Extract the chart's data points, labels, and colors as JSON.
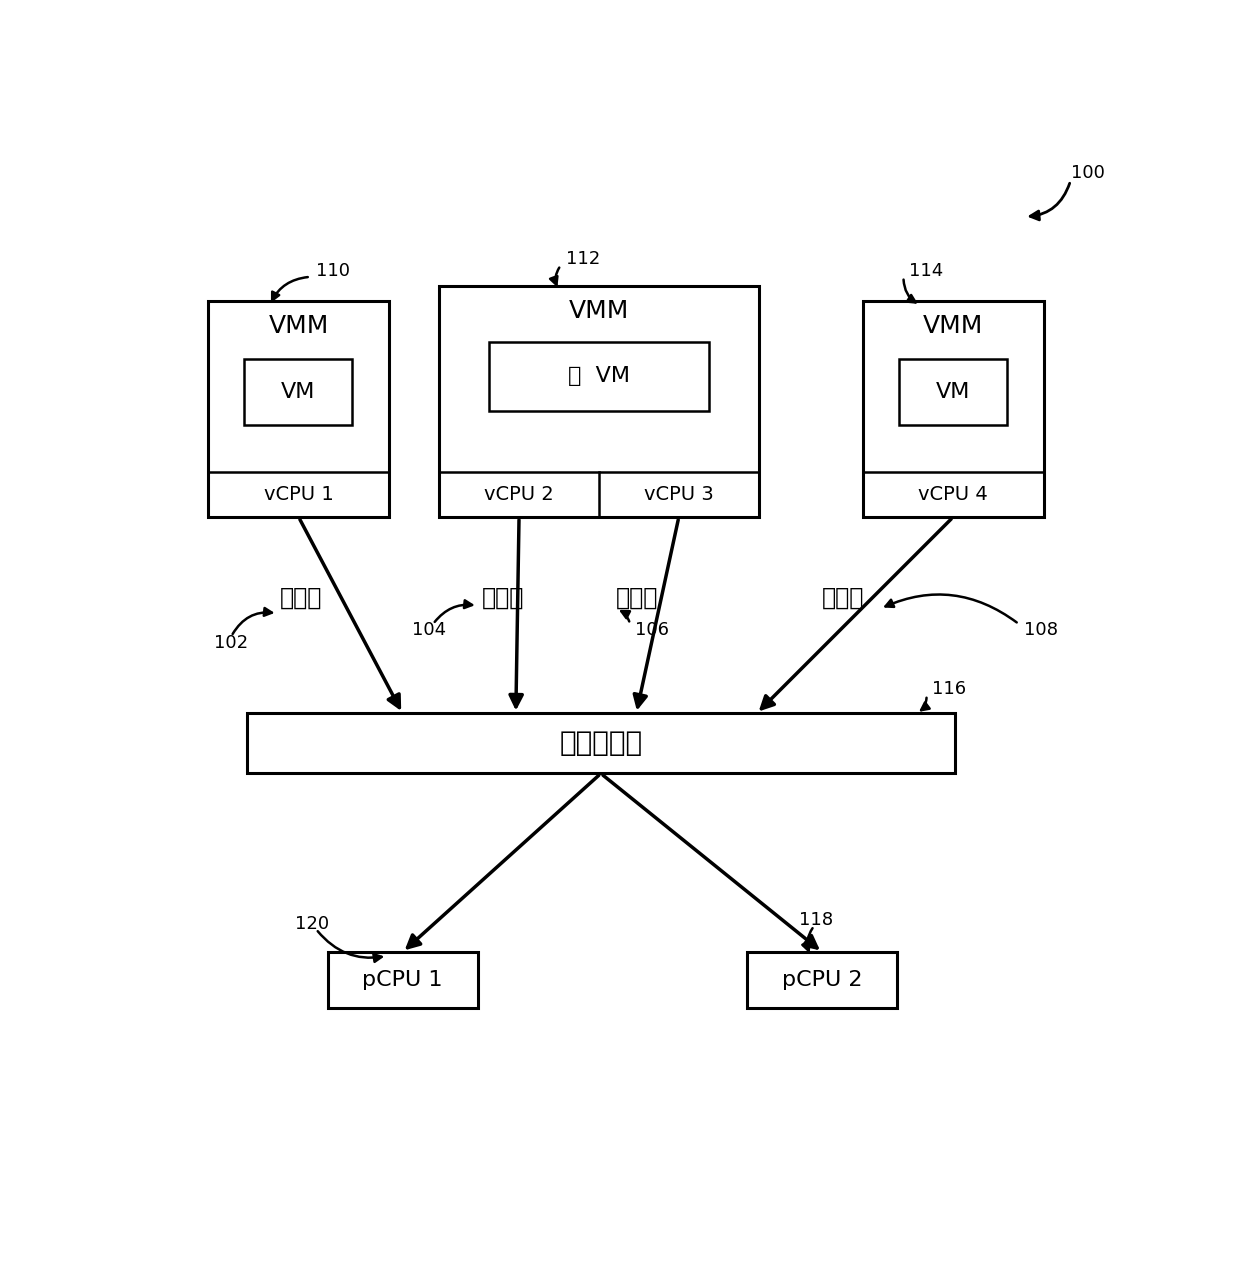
{
  "bg_color": "#ffffff",
  "line_color": "#000000",
  "font_size_ref": 13,
  "font_size_vmm": 18,
  "font_size_vm": 16,
  "font_size_vcpu": 14,
  "font_size_kernel": 20,
  "font_size_pcpu": 16,
  "font_size_label": 17,
  "title_ref": "100",
  "vmm1_ref": "110",
  "vmm2_ref": "112",
  "vmm3_ref": "114",
  "bystander_ref": "102",
  "colluder_ref": "104",
  "attacker_ref": "106",
  "victim_ref": "108",
  "kernel_ref": "116",
  "pcpu1_ref": "120",
  "pcpu2_ref": "118",
  "bystander_label": "旁观者",
  "colluder_label": "同谋者",
  "attacker_label": "攻击者",
  "victim_label": "受害者",
  "kernel_label": "虚拟机内核",
  "vmm2_vm_label": "双  VM",
  "vmm_label": "VMM",
  "vm_label": "VM",
  "vcpu1_label": "vCPU 1",
  "vcpu2_label": "vCPU 2",
  "vcpu3_label": "vCPU 3",
  "vcpu4_label": "vCPU 4",
  "pcpu1_label": "pCPU 1",
  "pcpu2_label": "pCPU 2"
}
